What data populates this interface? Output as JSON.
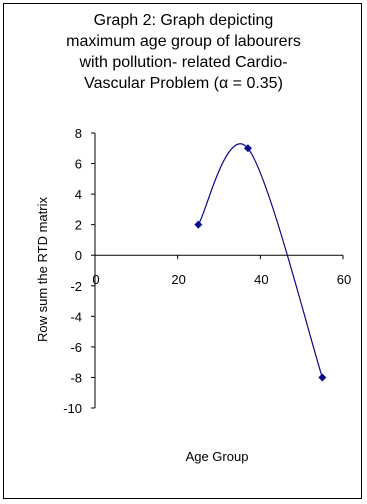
{
  "chart_data": {
    "type": "scatter",
    "title_lines": [
      "Graph 2: Graph depicting",
      "maximum age group of  labourers",
      "with pollution- related  Cardio-",
      "Vascular Problem (α  = 0.35)"
    ],
    "xlabel": "Age Group",
    "ylabel": "Row sum the RTD matrix",
    "xlim": [
      0,
      60
    ],
    "ylim": [
      -10,
      8
    ],
    "x_ticks": [
      0,
      20,
      40,
      60
    ],
    "y_ticks": [
      8,
      6,
      4,
      2,
      0,
      -2,
      -4,
      -6,
      -8,
      -10
    ],
    "x_tick_labels": [
      "0",
      "20",
      "40",
      "60"
    ],
    "y_tick_labels": [
      "8",
      "6",
      "4",
      "2",
      "0",
      "-2",
      "-4",
      "-6",
      "-8",
      "-10"
    ],
    "grid": false,
    "legend": "none",
    "series": [
      {
        "points": [
          {
            "x": 25,
            "y": 2
          },
          {
            "x": 37,
            "y": 7
          },
          {
            "x": 55,
            "y": -8
          }
        ],
        "marker": "diamond",
        "smoothed_line": true,
        "color": "#0a0a8c"
      }
    ]
  }
}
